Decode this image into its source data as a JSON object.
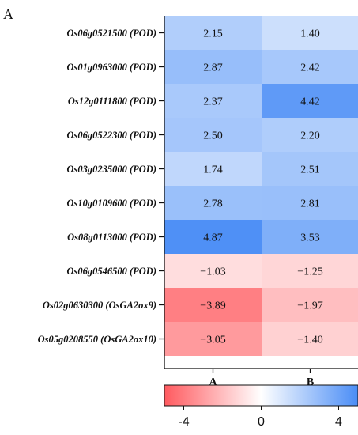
{
  "chart_data": {
    "type": "heatmap",
    "panel_label": "A",
    "rows": [
      "Os06g0521500 (POD)",
      "Os01g0963000 (POD)",
      "Os12g0111800 (POD)",
      "Os06g0522300 (POD)",
      "Os03g0235000 (POD)",
      "Os10g0109600 (POD)",
      "Os08g0113000 (POD)",
      "Os06g0546500 (POD)",
      "Os02g0630300 (OsGA2ox9)",
      "Os05g0208550 (OsGA2ox10)"
    ],
    "columns": [
      "A",
      "B"
    ],
    "values": [
      [
        2.15,
        1.4
      ],
      [
        2.87,
        2.42
      ],
      [
        2.37,
        4.42
      ],
      [
        2.5,
        2.2
      ],
      [
        1.74,
        2.51
      ],
      [
        2.78,
        2.81
      ],
      [
        4.87,
        3.53
      ],
      [
        -1.03,
        -1.25
      ],
      [
        -3.89,
        -1.97
      ],
      [
        -3.05,
        -1.4
      ]
    ],
    "value_labels": [
      [
        "2.15",
        "1.40"
      ],
      [
        "2.87",
        "2.42"
      ],
      [
        "2.37",
        "4.42"
      ],
      [
        "2.50",
        "2.20"
      ],
      [
        "1.74",
        "2.51"
      ],
      [
        "2.78",
        "2.81"
      ],
      [
        "4.87",
        "3.53"
      ],
      [
        "−1.03",
        "−1.25"
      ],
      [
        "−3.89",
        "−1.97"
      ],
      [
        "−3.05",
        "−1.40"
      ]
    ],
    "colorbar": {
      "range": [
        -5,
        5
      ],
      "ticks": [
        -4,
        0,
        4
      ],
      "tick_labels": [
        "-4",
        "0",
        "4"
      ],
      "colors": {
        "negative": "#ff5a5f",
        "zero": "#ffffff",
        "positive": "#4a8df6"
      }
    }
  }
}
